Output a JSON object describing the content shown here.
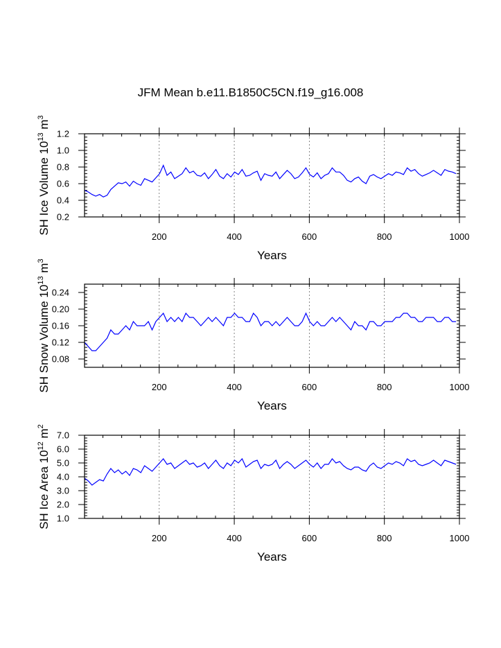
{
  "title": "JFM Mean b.e11.B1850C5CN.f19_g16.008",
  "chart_data": [
    {
      "type": "line",
      "ylabel": {
        "base": "SH Ice Volume 10",
        "exp": "13",
        "unit": " m",
        "unit_exp": "3"
      },
      "xlabel": "Years",
      "xlim": [
        1,
        1000
      ],
      "ylim": [
        0.2,
        1.2
      ],
      "xticks": [
        200,
        400,
        600,
        800,
        1000
      ],
      "xtick_labels": [
        "200",
        "400",
        "600",
        "800",
        "1000"
      ],
      "yticks": [
        0.2,
        0.4,
        0.6,
        0.8,
        1.0,
        1.2
      ],
      "ytick_labels": [
        "0.2",
        "0.4",
        "0.6",
        "0.8",
        "1.0",
        "1.2"
      ],
      "gridlines_x": [
        200,
        400,
        600,
        800
      ],
      "line_color": "#0000ff",
      "series": {
        "name": "SH Ice Volume",
        "x_start": 1,
        "x_step": 10,
        "values": [
          0.52,
          0.5,
          0.47,
          0.45,
          0.47,
          0.44,
          0.46,
          0.53,
          0.57,
          0.61,
          0.6,
          0.62,
          0.57,
          0.63,
          0.6,
          0.58,
          0.66,
          0.64,
          0.62,
          0.67,
          0.72,
          0.82,
          0.7,
          0.74,
          0.66,
          0.69,
          0.72,
          0.79,
          0.73,
          0.75,
          0.7,
          0.69,
          0.73,
          0.66,
          0.71,
          0.77,
          0.69,
          0.66,
          0.72,
          0.68,
          0.74,
          0.71,
          0.77,
          0.69,
          0.7,
          0.73,
          0.75,
          0.64,
          0.72,
          0.7,
          0.69,
          0.74,
          0.66,
          0.71,
          0.76,
          0.72,
          0.66,
          0.68,
          0.73,
          0.79,
          0.71,
          0.68,
          0.73,
          0.66,
          0.7,
          0.72,
          0.79,
          0.74,
          0.74,
          0.7,
          0.64,
          0.62,
          0.66,
          0.68,
          0.63,
          0.6,
          0.69,
          0.71,
          0.68,
          0.66,
          0.69,
          0.72,
          0.7,
          0.74,
          0.73,
          0.71,
          0.79,
          0.75,
          0.77,
          0.72,
          0.69,
          0.71,
          0.73,
          0.76,
          0.73,
          0.7,
          0.77,
          0.75,
          0.74,
          0.72
        ]
      }
    },
    {
      "type": "line",
      "ylabel": {
        "base": "SH Snow Volume 10",
        "exp": "13",
        "unit": " m",
        "unit_exp": "3"
      },
      "xlabel": "Years",
      "xlim": [
        1,
        1000
      ],
      "ylim": [
        0.06,
        0.26
      ],
      "xticks": [
        200,
        400,
        600,
        800,
        1000
      ],
      "xtick_labels": [
        "200",
        "400",
        "600",
        "800",
        "1000"
      ],
      "yticks": [
        0.08,
        0.12,
        0.16,
        0.2,
        0.24
      ],
      "ytick_labels": [
        "0.08",
        "0.12",
        "0.16",
        "0.20",
        "0.24"
      ],
      "gridlines_x": [
        200,
        400,
        600,
        800
      ],
      "line_color": "#0000ff",
      "series": {
        "name": "SH Snow Volume",
        "x_start": 1,
        "x_step": 10,
        "values": [
          0.12,
          0.11,
          0.1,
          0.1,
          0.11,
          0.12,
          0.13,
          0.15,
          0.14,
          0.14,
          0.15,
          0.16,
          0.15,
          0.17,
          0.16,
          0.16,
          0.16,
          0.17,
          0.15,
          0.17,
          0.18,
          0.19,
          0.17,
          0.18,
          0.17,
          0.18,
          0.17,
          0.19,
          0.18,
          0.18,
          0.17,
          0.16,
          0.17,
          0.18,
          0.17,
          0.18,
          0.17,
          0.16,
          0.18,
          0.18,
          0.19,
          0.18,
          0.18,
          0.17,
          0.17,
          0.19,
          0.18,
          0.16,
          0.17,
          0.17,
          0.16,
          0.17,
          0.16,
          0.17,
          0.18,
          0.17,
          0.16,
          0.16,
          0.17,
          0.19,
          0.17,
          0.16,
          0.17,
          0.16,
          0.16,
          0.17,
          0.18,
          0.17,
          0.18,
          0.17,
          0.16,
          0.15,
          0.17,
          0.16,
          0.16,
          0.15,
          0.17,
          0.17,
          0.16,
          0.16,
          0.17,
          0.17,
          0.17,
          0.18,
          0.18,
          0.19,
          0.19,
          0.18,
          0.18,
          0.17,
          0.17,
          0.18,
          0.18,
          0.18,
          0.17,
          0.17,
          0.18,
          0.18,
          0.17,
          0.17
        ]
      }
    },
    {
      "type": "line",
      "ylabel": {
        "base": "SH Ice Area 10",
        "exp": "12",
        "unit": " m",
        "unit_exp": "2"
      },
      "xlabel": "Years",
      "xlim": [
        1,
        1000
      ],
      "ylim": [
        1.0,
        7.0
      ],
      "xticks": [
        200,
        400,
        600,
        800,
        1000
      ],
      "xtick_labels": [
        "200",
        "400",
        "600",
        "800",
        "1000"
      ],
      "yticks": [
        1.0,
        2.0,
        3.0,
        4.0,
        5.0,
        6.0,
        7.0
      ],
      "ytick_labels": [
        "1.0",
        "2.0",
        "3.0",
        "4.0",
        "5.0",
        "6.0",
        "7.0"
      ],
      "gridlines_x": [
        200,
        400,
        600,
        800
      ],
      "line_color": "#0000ff",
      "series": {
        "name": "SH Ice Area",
        "x_start": 1,
        "x_step": 10,
        "values": [
          3.9,
          3.7,
          3.4,
          3.6,
          3.8,
          3.7,
          4.2,
          4.6,
          4.3,
          4.5,
          4.2,
          4.4,
          4.1,
          4.6,
          4.5,
          4.3,
          4.8,
          4.6,
          4.4,
          4.7,
          5.0,
          5.3,
          4.9,
          5.0,
          4.6,
          4.8,
          5.0,
          5.2,
          4.9,
          5.0,
          4.7,
          4.8,
          5.0,
          4.6,
          4.9,
          5.2,
          4.8,
          4.6,
          5.0,
          4.8,
          5.2,
          5.0,
          5.3,
          4.7,
          4.9,
          5.1,
          5.2,
          4.6,
          4.9,
          4.8,
          4.9,
          5.2,
          4.6,
          4.9,
          5.1,
          4.9,
          4.6,
          4.8,
          5.0,
          5.2,
          4.9,
          4.7,
          5.0,
          4.6,
          4.9,
          4.9,
          5.3,
          5.0,
          5.1,
          4.8,
          4.6,
          4.5,
          4.7,
          4.7,
          4.5,
          4.4,
          4.8,
          5.0,
          4.7,
          4.6,
          4.8,
          5.0,
          4.9,
          5.1,
          5.0,
          4.8,
          5.3,
          5.1,
          5.2,
          4.9,
          4.8,
          4.9,
          5.0,
          5.2,
          5.0,
          4.8,
          5.2,
          5.1,
          5.0,
          4.9
        ]
      }
    }
  ]
}
